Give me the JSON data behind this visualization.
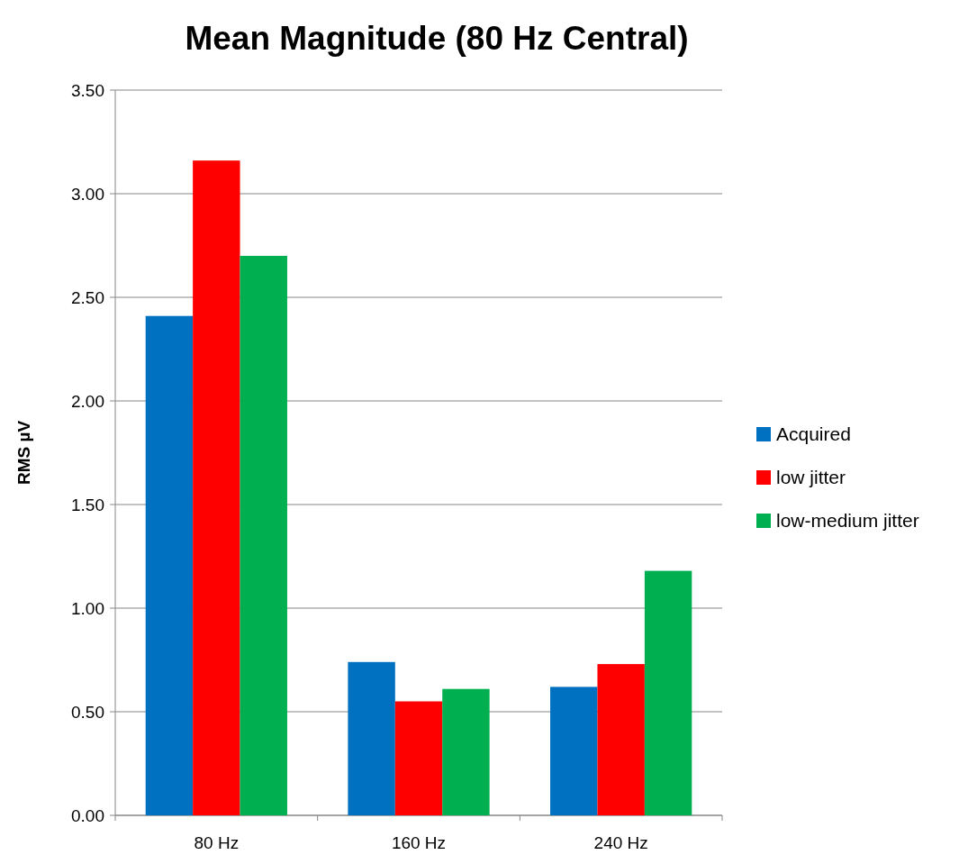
{
  "chart_data": {
    "type": "bar",
    "title": "Mean Magnitude (80 Hz Central)",
    "ylabel": "RMS µV",
    "categories": [
      "80 Hz",
      "160 Hz",
      "240 Hz"
    ],
    "series": [
      {
        "name": "Acquired",
        "color": "#0070c0",
        "values": [
          2.41,
          0.74,
          0.62
        ]
      },
      {
        "name": "low jitter",
        "color": "#ff0000",
        "values": [
          3.16,
          0.55,
          0.73
        ]
      },
      {
        "name": "low-medium jitter",
        "color": "#00b050",
        "values": [
          2.7,
          0.61,
          1.18
        ]
      }
    ],
    "ylim": [
      0,
      3.5
    ],
    "yticks": [
      {
        "value": 0,
        "label": "0.00"
      },
      {
        "value": 0.5,
        "label": "0.50"
      },
      {
        "value": 1,
        "label": "1.00"
      },
      {
        "value": 1.5,
        "label": "1.50"
      },
      {
        "value": 2,
        "label": "2.00"
      },
      {
        "value": 2.5,
        "label": "2.50"
      },
      {
        "value": 3,
        "label": "3.00"
      },
      {
        "value": 3.5,
        "label": "3.50"
      }
    ],
    "grid": "y",
    "legend": "right"
  }
}
